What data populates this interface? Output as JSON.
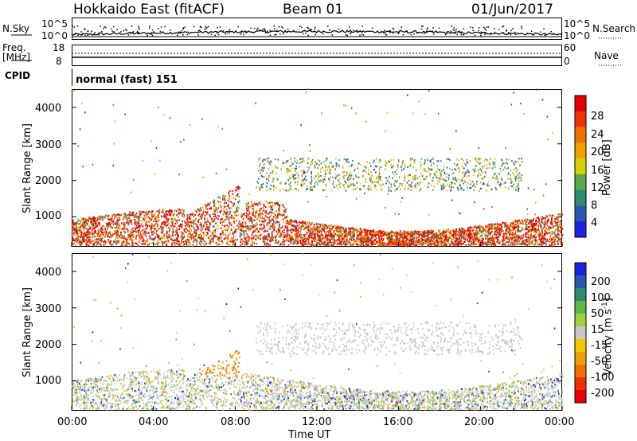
{
  "header": {
    "station": "Hokkaido East (fitACF)",
    "beam": "Beam 01",
    "date": "01/Jun/2017"
  },
  "top_panels": {
    "nsky_label": "N.Sky",
    "nsky_ticks": [
      "10^5",
      "10^0"
    ],
    "nsearch_label": "N.Search",
    "nsearch_ticks": [
      "10^5",
      "10^0"
    ],
    "freq_label_1": "Freq.",
    "freq_label_2": "[MHz]",
    "freq_ticks": [
      "18",
      "8"
    ],
    "nave_label": "Nave",
    "nave_ticks": [
      "60",
      "0"
    ],
    "cpid_label": "CPID",
    "cpid_value": "normal (fast) 151"
  },
  "chart_data": [
    {
      "type": "heatmap",
      "name": "power",
      "ylabel": "Slant Range [km]",
      "yticks": [
        "4000",
        "3000",
        "2000",
        "1000"
      ],
      "ylim": [
        180,
        4500
      ],
      "colorbar_label": "Power [dB]",
      "colorbar_ticks": [
        "28",
        "24",
        "20",
        "16",
        "12",
        "8",
        "4"
      ],
      "colorbar_colors": [
        "#1e22e6",
        "#2a58b0",
        "#2f8a6a",
        "#5aa84a",
        "#d8d000",
        "#f0a000",
        "#f07000",
        "#f03000",
        "#e80000"
      ]
    },
    {
      "type": "heatmap",
      "name": "velocity",
      "ylabel": "Slant Range [km]",
      "yticks": [
        "4000",
        "3000",
        "2000",
        "1000"
      ],
      "ylim": [
        180,
        4500
      ],
      "xlabel": "Time UT",
      "xticks": [
        "00:00",
        "04:00",
        "08:00",
        "12:00",
        "16:00",
        "20:00",
        "00:00"
      ],
      "colorbar_label": "Velocity [m s",
      "colorbar_label_sup": "-1",
      "colorbar_label_end": "]",
      "colorbar_ticks": [
        "200",
        "100",
        "50",
        "15",
        "-15",
        "-50",
        "-100",
        "-200"
      ],
      "colorbar_colors": [
        "#1e22e6",
        "#2a58b0",
        "#2f8a6a",
        "#5ab84a",
        "#a0d040",
        "#c8c8c8",
        "#f0c800",
        "#f0a000",
        "#f07000",
        "#f03000",
        "#e80000"
      ]
    }
  ]
}
